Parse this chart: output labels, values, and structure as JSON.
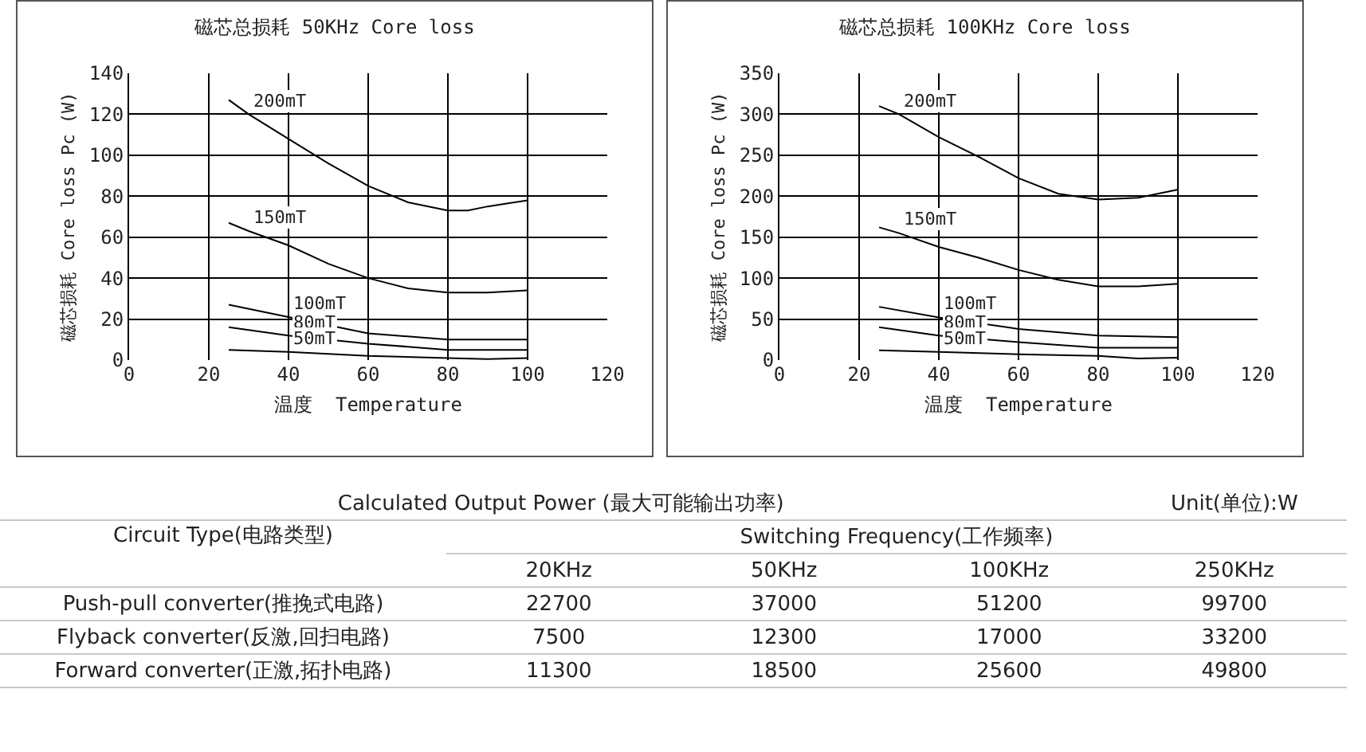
{
  "chart_data": [
    {
      "type": "line",
      "title": "磁芯总损耗 50KHz Core loss",
      "xlabel": "温度  Temperature",
      "ylabel": "磁芯损耗 Core loss Pc (W)",
      "xlim": [
        0,
        120
      ],
      "xticks": [
        0,
        20,
        40,
        60,
        80,
        100,
        120
      ],
      "ylim": [
        0,
        140
      ],
      "yticks": [
        0,
        20,
        40,
        60,
        80,
        100,
        120,
        140
      ],
      "grid": true,
      "legend": false,
      "marker": "none",
      "line_style": "solid",
      "series": [
        {
          "name": "200mT",
          "color": "#000000",
          "x": [
            25,
            30,
            40,
            50,
            60,
            70,
            80,
            85,
            90,
            100
          ],
          "values": [
            127,
            120,
            108,
            96,
            85,
            77,
            73,
            73,
            75,
            78
          ]
        },
        {
          "name": "150mT",
          "color": "#000000",
          "x": [
            25,
            30,
            40,
            50,
            60,
            70,
            80,
            90,
            100
          ],
          "values": [
            67,
            63,
            56,
            47,
            40,
            35,
            33,
            33,
            34
          ]
        },
        {
          "name": "100mT",
          "color": "#000000",
          "x": [
            25,
            40,
            60,
            80,
            100
          ],
          "values": [
            27,
            21,
            13,
            10,
            10
          ]
        },
        {
          "name": "80mT",
          "color": "#000000",
          "x": [
            25,
            40,
            60,
            80,
            100
          ],
          "values": [
            16,
            12,
            8,
            5,
            5
          ]
        },
        {
          "name": "50mT",
          "color": "#000000",
          "x": [
            25,
            40,
            60,
            80,
            90,
            100
          ],
          "values": [
            5,
            4,
            2,
            1,
            0.5,
            1
          ]
        }
      ]
    },
    {
      "type": "line",
      "title": "磁芯总损耗 100KHz Core loss",
      "xlabel": "温度  Temperature",
      "ylabel": "磁芯损耗 Core loss Pc (W)",
      "xlim": [
        0,
        120
      ],
      "xticks": [
        0,
        20,
        40,
        60,
        80,
        100,
        120
      ],
      "ylim": [
        0,
        350
      ],
      "yticks": [
        0,
        50,
        100,
        150,
        200,
        250,
        300,
        350
      ],
      "grid": true,
      "legend": false,
      "marker": "none",
      "line_style": "solid",
      "series": [
        {
          "name": "200mT",
          "color": "#000000",
          "x": [
            25,
            30,
            40,
            50,
            60,
            70,
            80,
            90,
            100
          ],
          "values": [
            310,
            300,
            272,
            248,
            222,
            203,
            196,
            198,
            208
          ]
        },
        {
          "name": "150mT",
          "color": "#000000",
          "x": [
            25,
            30,
            40,
            50,
            60,
            70,
            80,
            90,
            100
          ],
          "values": [
            162,
            155,
            138,
            125,
            110,
            98,
            90,
            90,
            93
          ]
        },
        {
          "name": "100mT",
          "color": "#000000",
          "x": [
            25,
            40,
            60,
            80,
            100
          ],
          "values": [
            65,
            52,
            38,
            30,
            28
          ]
        },
        {
          "name": "80mT",
          "color": "#000000",
          "x": [
            25,
            40,
            60,
            80,
            100
          ],
          "values": [
            40,
            30,
            22,
            15,
            15
          ]
        },
        {
          "name": "50mT",
          "color": "#000000",
          "x": [
            25,
            40,
            60,
            80,
            90,
            100
          ],
          "values": [
            12,
            10,
            7,
            5,
            2,
            3
          ]
        }
      ]
    },
    {
      "type": "heatmap",
      "data_labels": true,
      "grid": "y",
      "title": "Calculated Output Power (最大可能输出功率)",
      "annotations": [
        "Unit(单位):W"
      ],
      "ylabel": "Circuit Type(电路类型)",
      "xlabel": "Switching Frequency(工作频率)",
      "categories": [
        "20KHz",
        "50KHz",
        "100KHz",
        "250KHz"
      ],
      "y_categories": [
        "Push-pull converter(推挽式电路)",
        "Flyback converter(反激,回扫电路)",
        "Forward converter(正激,拓扑电路)"
      ],
      "cells": [
        [
          22700,
          37000,
          51200,
          99700
        ],
        [
          7500,
          12300,
          17000,
          33200
        ],
        [
          11300,
          18500,
          25600,
          49800
        ]
      ]
    }
  ]
}
